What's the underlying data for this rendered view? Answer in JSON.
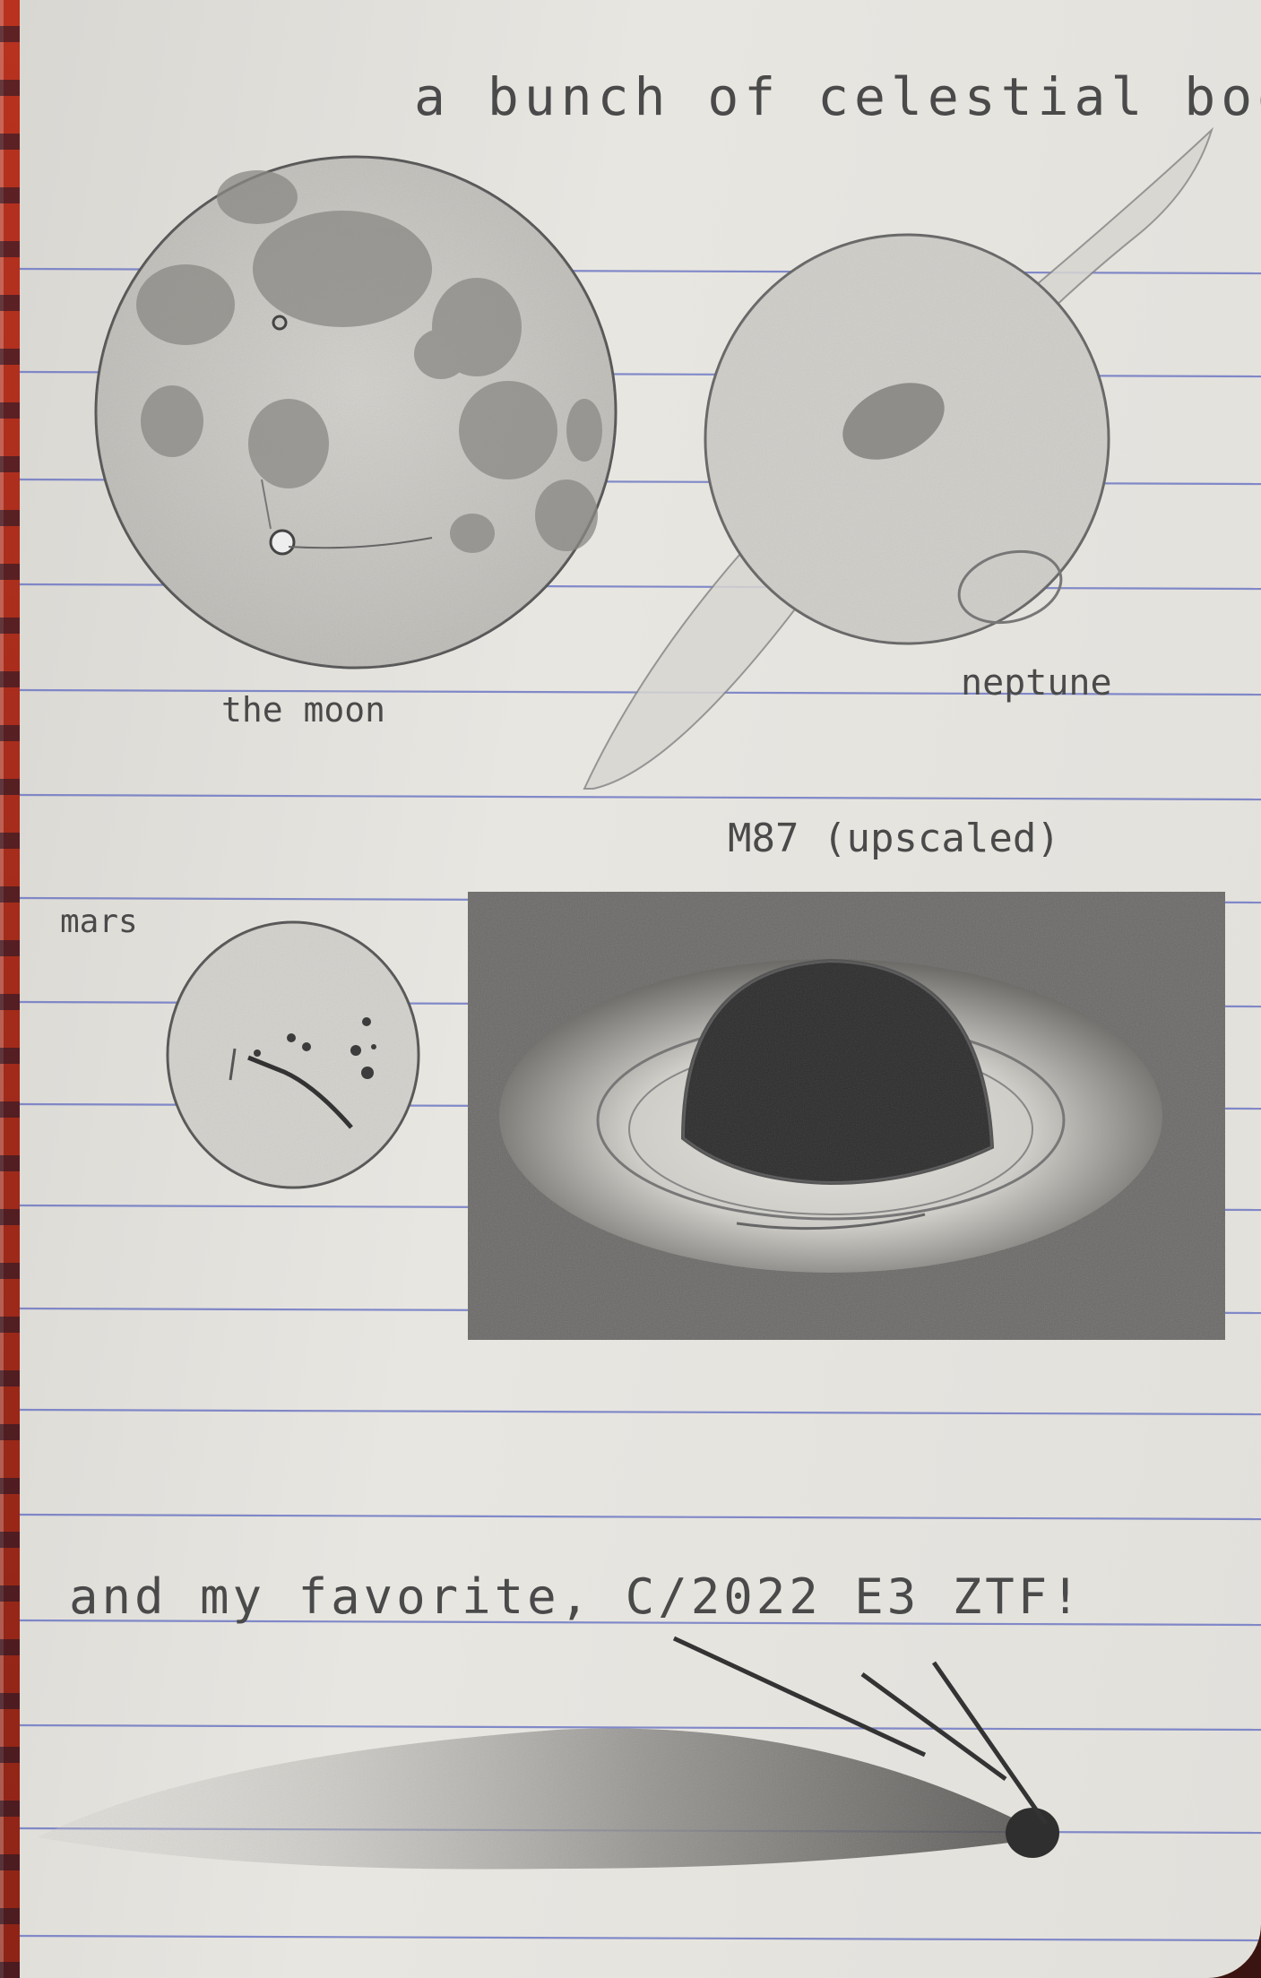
{
  "page": {
    "title": "a bunch of celestial bodies",
    "labels": {
      "moon": "the moon",
      "neptune": "neptune",
      "m87": "M87 (upscaled)",
      "mars": "mars",
      "favorite": "and my favorite, C/2022 E3 ZTF!"
    }
  },
  "colors": {
    "paper": "#e4e2dd",
    "rule_line": "#6f79c4",
    "pencil": "#4a4a4a",
    "plaid": "#b8321f"
  }
}
